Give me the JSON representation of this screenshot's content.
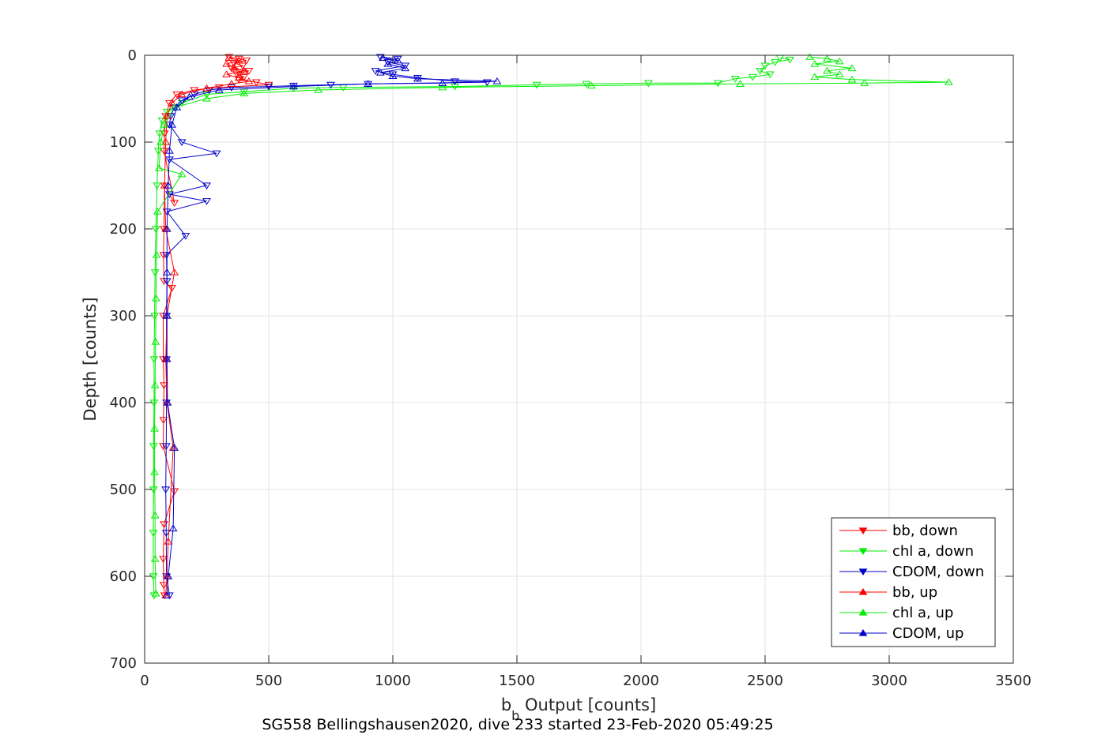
{
  "chart_data": {
    "type": "line",
    "title": "",
    "xlabel": "b",
    "xlabel_sub": "b",
    "xlabel_rest": " Output [counts]",
    "ylabel": "Depth [counts]",
    "footer": "SG558 Bellingshausen2020, dive 233 started 23-Feb-2020 05:49:25",
    "xlim": [
      0,
      3500
    ],
    "ylim": [
      0,
      700
    ],
    "y_reversed": true,
    "grid": true,
    "legend_position": "bottom-right",
    "xticks": [
      0,
      500,
      1000,
      1500,
      2000,
      2500,
      3000,
      3500
    ],
    "xtick_labels": [
      "0",
      "500",
      "1000",
      "1500",
      "2000",
      "2500",
      "3000",
      "3500"
    ],
    "yticks": [
      0,
      100,
      200,
      300,
      400,
      500,
      600,
      700
    ],
    "ytick_labels": [
      "0",
      "100",
      "200",
      "300",
      "400",
      "500",
      "600",
      "700"
    ],
    "series": [
      {
        "name": "bb, down",
        "color": "#ff0000",
        "marker": "triangle-down",
        "points": [
          [
            340,
            2
          ],
          [
            380,
            4
          ],
          [
            410,
            6
          ],
          [
            360,
            9
          ],
          [
            395,
            12
          ],
          [
            350,
            15
          ],
          [
            420,
            18
          ],
          [
            370,
            21
          ],
          [
            400,
            25
          ],
          [
            380,
            28
          ],
          [
            450,
            31
          ],
          [
            500,
            34
          ],
          [
            300,
            37
          ],
          [
            200,
            40
          ],
          [
            130,
            45
          ],
          [
            100,
            55
          ],
          [
            85,
            70
          ],
          [
            80,
            90
          ],
          [
            78,
            110
          ],
          [
            120,
            170
          ],
          [
            80,
            150
          ],
          [
            78,
            200
          ],
          [
            76,
            230
          ],
          [
            78,
            260
          ],
          [
            110,
            268
          ],
          [
            75,
            300
          ],
          [
            75,
            350
          ],
          [
            78,
            380
          ],
          [
            76,
            420
          ],
          [
            75,
            450
          ],
          [
            120,
            502
          ],
          [
            78,
            540
          ],
          [
            75,
            580
          ],
          [
            77,
            610
          ],
          [
            80,
            622
          ]
        ]
      },
      {
        "name": "chl a, down",
        "color": "#00ee00",
        "marker": "triangle-down",
        "points": [
          [
            2560,
            3
          ],
          [
            2600,
            5
          ],
          [
            2540,
            8
          ],
          [
            2500,
            12
          ],
          [
            2480,
            18
          ],
          [
            2520,
            22
          ],
          [
            2450,
            25
          ],
          [
            2380,
            27
          ],
          [
            2310,
            32
          ],
          [
            2030,
            32
          ],
          [
            1780,
            33
          ],
          [
            1580,
            34
          ],
          [
            1250,
            36
          ],
          [
            800,
            37
          ],
          [
            600,
            38
          ],
          [
            400,
            42
          ],
          [
            250,
            45
          ],
          [
            150,
            55
          ],
          [
            90,
            65
          ],
          [
            70,
            75
          ],
          [
            60,
            90
          ],
          [
            55,
            110
          ],
          [
            50,
            150
          ],
          [
            45,
            200
          ],
          [
            42,
            250
          ],
          [
            40,
            300
          ],
          [
            38,
            350
          ],
          [
            38,
            400
          ],
          [
            36,
            450
          ],
          [
            36,
            500
          ],
          [
            35,
            550
          ],
          [
            35,
            600
          ],
          [
            38,
            622
          ]
        ]
      },
      {
        "name": "CDOM, down",
        "color": "#0000cc",
        "marker": "triangle-down",
        "points": [
          [
            950,
            2
          ],
          [
            1020,
            4
          ],
          [
            980,
            8
          ],
          [
            1050,
            12
          ],
          [
            930,
            18
          ],
          [
            1000,
            22
          ],
          [
            1100,
            26
          ],
          [
            1250,
            30
          ],
          [
            1380,
            31
          ],
          [
            900,
            33
          ],
          [
            750,
            34
          ],
          [
            600,
            35
          ],
          [
            500,
            36
          ],
          [
            350,
            37
          ],
          [
            260,
            40
          ],
          [
            200,
            45
          ],
          [
            150,
            52
          ],
          [
            120,
            60
          ],
          [
            105,
            70
          ],
          [
            100,
            80
          ],
          [
            150,
            100
          ],
          [
            290,
            113
          ],
          [
            100,
            120
          ],
          [
            250,
            150
          ],
          [
            100,
            160
          ],
          [
            250,
            168
          ],
          [
            90,
            180
          ],
          [
            165,
            208
          ],
          [
            88,
            230
          ],
          [
            90,
            260
          ],
          [
            88,
            300
          ],
          [
            88,
            350
          ],
          [
            88,
            400
          ],
          [
            87,
            450
          ],
          [
            85,
            500
          ],
          [
            87,
            550
          ],
          [
            88,
            600
          ],
          [
            100,
            622
          ]
        ]
      },
      {
        "name": "bb, up",
        "color": "#ff0000",
        "marker": "triangle-up",
        "points": [
          [
            85,
            622
          ],
          [
            90,
            600
          ],
          [
            95,
            560
          ],
          [
            115,
            452
          ],
          [
            90,
            400
          ],
          [
            85,
            350
          ],
          [
            90,
            300
          ],
          [
            120,
            250
          ],
          [
            85,
            200
          ],
          [
            80,
            150
          ],
          [
            85,
            100
          ],
          [
            90,
            70
          ],
          [
            110,
            55
          ],
          [
            150,
            45
          ],
          [
            250,
            38
          ],
          [
            350,
            33
          ],
          [
            420,
            30
          ],
          [
            380,
            26
          ],
          [
            330,
            22
          ],
          [
            400,
            18
          ],
          [
            360,
            14
          ],
          [
            330,
            10
          ],
          [
            380,
            6
          ],
          [
            340,
            3
          ]
        ]
      },
      {
        "name": "chl a, up",
        "color": "#00ee00",
        "marker": "triangle-up",
        "points": [
          [
            45,
            620
          ],
          [
            42,
            580
          ],
          [
            42,
            530
          ],
          [
            40,
            480
          ],
          [
            40,
            430
          ],
          [
            42,
            380
          ],
          [
            44,
            330
          ],
          [
            46,
            280
          ],
          [
            48,
            230
          ],
          [
            52,
            180
          ],
          [
            150,
            137
          ],
          [
            58,
            130
          ],
          [
            65,
            100
          ],
          [
            80,
            80
          ],
          [
            120,
            60
          ],
          [
            250,
            50
          ],
          [
            400,
            44
          ],
          [
            700,
            40
          ],
          [
            1200,
            37
          ],
          [
            1800,
            35
          ],
          [
            2400,
            33
          ],
          [
            2900,
            32
          ],
          [
            3240,
            31
          ],
          [
            2850,
            28
          ],
          [
            2700,
            25
          ],
          [
            2800,
            22
          ],
          [
            2750,
            18
          ],
          [
            2850,
            15
          ],
          [
            2700,
            10
          ],
          [
            2800,
            7
          ],
          [
            2750,
            4
          ],
          [
            2680,
            2
          ]
        ]
      },
      {
        "name": "CDOM, up",
        "color": "#0000cc",
        "marker": "triangle-up",
        "points": [
          [
            90,
            622
          ],
          [
            95,
            600
          ],
          [
            115,
            545
          ],
          [
            120,
            452
          ],
          [
            92,
            400
          ],
          [
            90,
            350
          ],
          [
            90,
            300
          ],
          [
            90,
            250
          ],
          [
            90,
            200
          ],
          [
            95,
            150
          ],
          [
            100,
            110
          ],
          [
            110,
            80
          ],
          [
            130,
            60
          ],
          [
            180,
            48
          ],
          [
            300,
            40
          ],
          [
            600,
            36
          ],
          [
            900,
            33
          ],
          [
            1200,
            32
          ],
          [
            1420,
            30
          ],
          [
            1100,
            27
          ],
          [
            1000,
            24
          ],
          [
            950,
            20
          ],
          [
            1050,
            15
          ],
          [
            980,
            10
          ],
          [
            1020,
            6
          ],
          [
            960,
            3
          ]
        ]
      }
    ]
  }
}
